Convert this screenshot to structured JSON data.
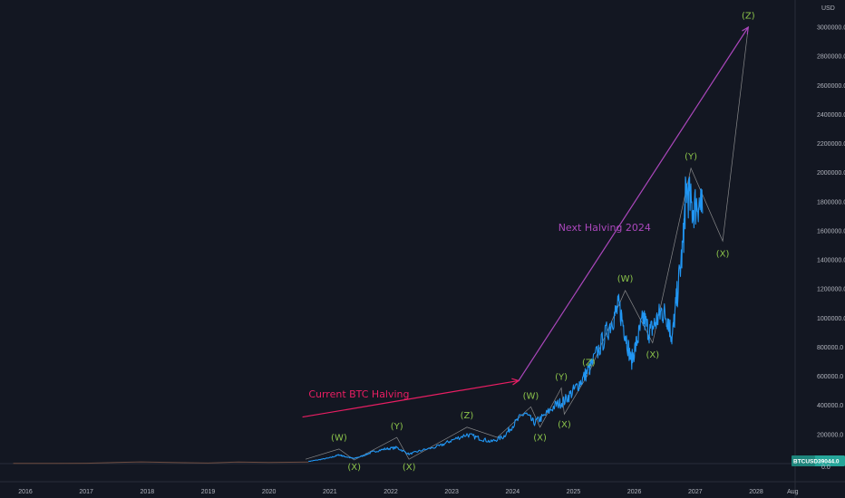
{
  "chart_data": {
    "type": "line",
    "symbol": "BTCUSD",
    "last_price": "39044.0",
    "currency": "USD",
    "x_ticks": [
      "2016",
      "2017",
      "2018",
      "2019",
      "2020",
      "2021",
      "2022",
      "2023",
      "2024",
      "2025",
      "2026",
      "2027",
      "2028",
      "Aug"
    ],
    "y_ticks": [
      "200000.0",
      "400000.0",
      "600000.0",
      "800000.0",
      "1000000.0",
      "1200000.0",
      "1400000.0",
      "1600000.0",
      "1800000.0",
      "2000000.0",
      "2200000.0",
      "2400000.0",
      "2600000.0",
      "2800000.0",
      "3000000.0"
    ],
    "y_zero_label": "0.0",
    "ylim": [
      -60000,
      3130000
    ],
    "xlim": [
      2015.8,
      2028.65
    ],
    "historical": [
      [
        2015.8,
        1000
      ],
      [
        2016.5,
        1500
      ],
      [
        2017.0,
        2500
      ],
      [
        2017.9,
        12000
      ],
      [
        2018.5,
        7000
      ],
      [
        2019.0,
        4000
      ],
      [
        2019.5,
        11000
      ],
      [
        2020.0,
        8000
      ],
      [
        2020.5,
        10000
      ],
      [
        2020.65,
        11000
      ]
    ],
    "projection": [
      [
        2020.65,
        15000
      ],
      [
        2020.8,
        25000
      ],
      [
        2021.0,
        40000
      ],
      [
        2021.15,
        60000
      ],
      [
        2021.25,
        48000
      ],
      [
        2021.4,
        35000
      ],
      [
        2021.55,
        55000
      ],
      [
        2021.7,
        80000
      ],
      [
        2021.9,
        100000
      ],
      [
        2022.1,
        110000
      ],
      [
        2022.3,
        65000
      ],
      [
        2022.5,
        90000
      ],
      [
        2022.8,
        120000
      ],
      [
        2023.0,
        160000
      ],
      [
        2023.25,
        200000
      ],
      [
        2023.45,
        175000
      ],
      [
        2023.65,
        150000
      ],
      [
        2023.85,
        185000
      ],
      [
        2024.0,
        260000
      ],
      [
        2024.2,
        350000
      ],
      [
        2024.35,
        280000
      ],
      [
        2024.5,
        320000
      ],
      [
        2024.7,
        400000
      ],
      [
        2024.85,
        430000
      ],
      [
        2025.0,
        500000
      ],
      [
        2025.15,
        580000
      ],
      [
        2025.3,
        680000
      ],
      [
        2025.5,
        860000
      ],
      [
        2025.65,
        1000000
      ],
      [
        2025.75,
        1080000
      ],
      [
        2025.85,
        900000
      ],
      [
        2025.95,
        700000
      ],
      [
        2026.05,
        850000
      ],
      [
        2026.15,
        1000000
      ],
      [
        2026.25,
        900000
      ],
      [
        2026.35,
        970000
      ],
      [
        2026.45,
        1050000
      ],
      [
        2026.55,
        1000000
      ],
      [
        2026.62,
        860000
      ],
      [
        2026.7,
        1150000
      ],
      [
        2026.8,
        1500000
      ],
      [
        2026.85,
        1900000
      ],
      [
        2026.95,
        1750000
      ],
      [
        2027.05,
        1800000
      ],
      [
        2027.12,
        1720000
      ]
    ],
    "wave_path": [
      [
        2020.6,
        30000
      ],
      [
        2021.15,
        100000
      ],
      [
        2021.4,
        25000
      ],
      [
        2022.1,
        180000
      ],
      [
        2022.3,
        30000
      ],
      [
        2023.25,
        250000
      ],
      [
        2023.75,
        180000
      ],
      [
        2024.3,
        390000
      ],
      [
        2024.45,
        250000
      ],
      [
        2024.8,
        520000
      ],
      [
        2024.85,
        340000
      ],
      [
        2025.25,
        620000
      ],
      [
        2025.85,
        1190000
      ],
      [
        2026.3,
        830000
      ],
      [
        2026.93,
        2030000
      ],
      [
        2027.45,
        1530000
      ],
      [
        2027.87,
        3000000
      ]
    ],
    "wave_labels": [
      {
        "text": "(W)",
        "x": 2021.15,
        "y": 158000,
        "side": "above"
      },
      {
        "text": "(X)",
        "x": 2021.4,
        "y": -5000,
        "side": "below"
      },
      {
        "text": "(Y)",
        "x": 2022.1,
        "y": 235000,
        "side": "above"
      },
      {
        "text": "(X)",
        "x": 2022.3,
        "y": -5000,
        "side": "below"
      },
      {
        "text": "(Z)",
        "x": 2023.25,
        "y": 310000,
        "side": "above"
      },
      {
        "text": "(W)",
        "x": 2024.3,
        "y": 445000,
        "side": "above"
      },
      {
        "text": "(X)",
        "x": 2024.45,
        "y": 195000,
        "side": "below"
      },
      {
        "text": "(Y)",
        "x": 2024.8,
        "y": 575000,
        "side": "above"
      },
      {
        "text": "(X)",
        "x": 2024.85,
        "y": 285000,
        "side": "below"
      },
      {
        "text": "(Z)",
        "x": 2025.25,
        "y": 675000,
        "side": "above"
      },
      {
        "text": "(W)",
        "x": 2025.85,
        "y": 1250000,
        "side": "above"
      },
      {
        "text": "(X)",
        "x": 2026.3,
        "y": 765000,
        "side": "below"
      },
      {
        "text": "(Y)",
        "x": 2026.93,
        "y": 2090000,
        "side": "above"
      },
      {
        "text": "(X)",
        "x": 2027.45,
        "y": 1460000,
        "side": "below"
      },
      {
        "text": "(Z)",
        "x": 2027.87,
        "y": 3060000,
        "side": "above"
      }
    ],
    "annotations": {
      "current_halving": {
        "label": "Current BTC Halving",
        "from": [
          2020.55,
          320000
        ],
        "to": [
          2024.1,
          570000
        ],
        "label_at": [
          2020.65,
          455000
        ],
        "color": "#e91e63"
      },
      "next_halving": {
        "label": "Next Halving 2024",
        "from": [
          2024.1,
          570000
        ],
        "to": [
          2027.87,
          3000000
        ],
        "label_at": [
          2024.75,
          1600000
        ],
        "color": "#ab47bc"
      }
    },
    "colors": {
      "price": "#2196f3",
      "history": "#6d4c41",
      "wave": "#9e9e9e",
      "wave_labels": "#8bc34a",
      "price_tag": "#26a69a"
    },
    "grid": false
  }
}
